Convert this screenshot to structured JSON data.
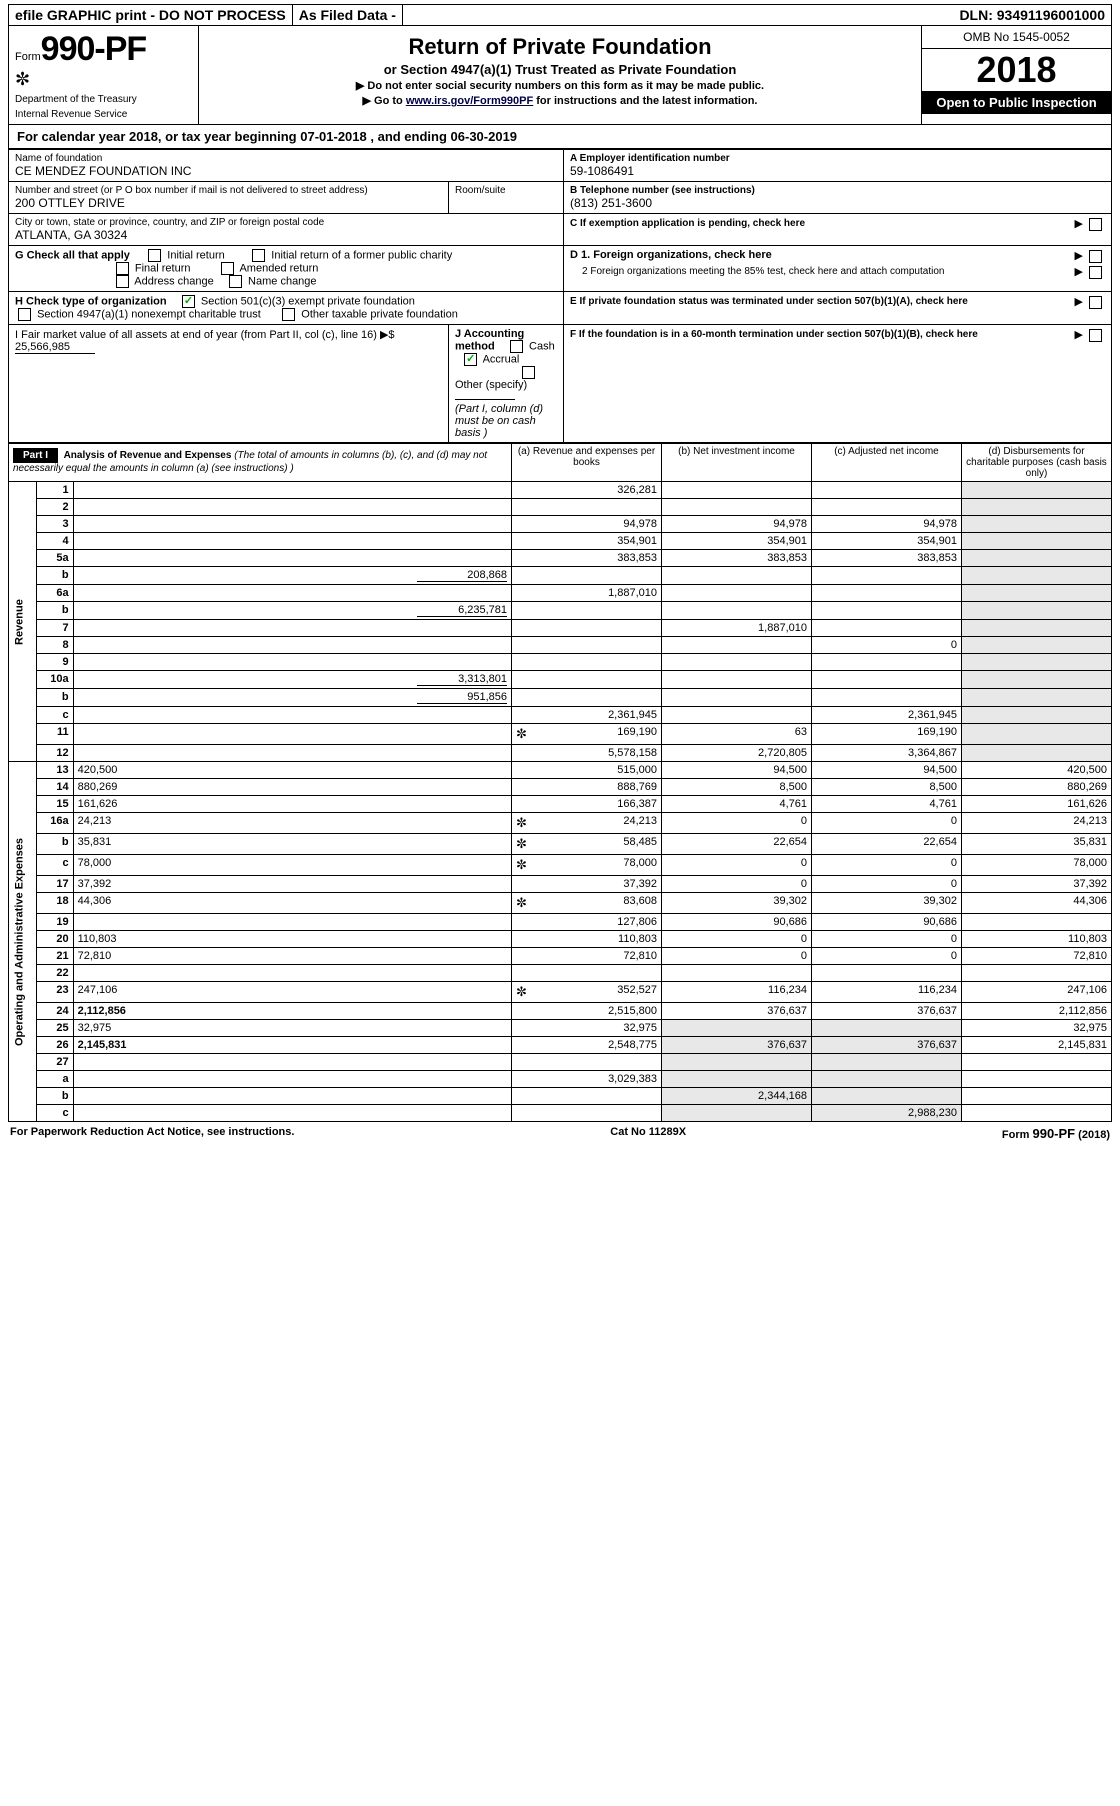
{
  "topbar": {
    "efile": "efile GRAPHIC print - DO NOT PROCESS",
    "asfiled": "As Filed Data -",
    "dln_label": "DLN:",
    "dln": "93491196001000"
  },
  "header": {
    "form_word": "Form",
    "form_no": "990-PF",
    "dept1": "Department of the Treasury",
    "dept2": "Internal Revenue Service",
    "title": "Return of Private Foundation",
    "subtitle": "or Section 4947(a)(1) Trust Treated as Private Foundation",
    "note1": "▶ Do not enter social security numbers on this form as it may be made public.",
    "note2_pre": "▶ Go to ",
    "note2_link": "www.irs.gov/Form990PF",
    "note2_post": " for instructions and the latest information.",
    "omb": "OMB No 1545-0052",
    "year": "2018",
    "open": "Open to Public Inspection"
  },
  "calyear": {
    "pre": "For calendar year 2018, or tax year beginning ",
    "begin": "07-01-2018",
    "mid": " , and ending ",
    "end": "06-30-2019"
  },
  "boxA": {
    "label": "Name of foundation",
    "val": "CE MENDEZ FOUNDATION INC"
  },
  "ein": {
    "label": "A Employer identification number",
    "val": "59-1086491"
  },
  "boxAddr": {
    "label": "Number and street (or P O  box number if mail is not delivered to street address)",
    "val": "200 OTTLEY DRIVE",
    "room_label": "Room/suite"
  },
  "tel": {
    "label": "B Telephone number (see instructions)",
    "val": "(813) 251-3600"
  },
  "city": {
    "label": "City or town, state or province, country, and ZIP or foreign postal code",
    "val": "ATLANTA, GA  30324"
  },
  "boxC": "C If exemption application is pending, check here",
  "boxG": {
    "label": "G Check all that apply",
    "o1": "Initial return",
    "o2": "Initial return of a former public charity",
    "o3": "Final return",
    "o4": "Amended return",
    "o5": "Address change",
    "o6": "Name change"
  },
  "boxD": {
    "d1": "D 1. Foreign organizations, check here",
    "d2": "2  Foreign organizations meeting the 85% test, check here and attach computation"
  },
  "boxH": {
    "label": "H Check type of organization",
    "o1": "Section 501(c)(3) exempt private foundation",
    "o2": "Section 4947(a)(1) nonexempt charitable trust",
    "o3": "Other taxable private foundation"
  },
  "boxE": "E  If private foundation status was terminated under section 507(b)(1)(A), check here",
  "boxI": {
    "label": "I Fair market value of all assets at end of year (from Part II, col  (c), line 16) ▶$ ",
    "val": "25,566,985"
  },
  "boxJ": {
    "label": "J Accounting method",
    "o1": "Cash",
    "o2": "Accrual",
    "o3": "Other (specify)",
    "note": "(Part I, column (d) must be on cash basis )"
  },
  "boxF": "F  If the foundation is in a 60-month termination under section 507(b)(1)(B), check here",
  "part1": {
    "title": "Part I",
    "heading": "Analysis of Revenue and Expenses",
    "sub": "(The total of amounts in columns (b), (c), and (d) may not necessarily equal the amounts in column (a) (see instructions) )",
    "col_a": "(a)  Revenue and expenses per books",
    "col_b": "(b)  Net investment income",
    "col_c": "(c)  Adjusted net income",
    "col_d": "(d)  Disbursements for charitable purposes (cash basis only)"
  },
  "sections": {
    "revenue": "Revenue",
    "expenses": "Operating and Administrative Expenses"
  },
  "rows": [
    {
      "n": "1",
      "d": "",
      "a": "326,281",
      "b": "",
      "c": ""
    },
    {
      "n": "2",
      "d": "",
      "a": "",
      "b": "",
      "c": ""
    },
    {
      "n": "3",
      "d": "",
      "a": "94,978",
      "b": "94,978",
      "c": "94,978"
    },
    {
      "n": "4",
      "d": "",
      "a": "354,901",
      "b": "354,901",
      "c": "354,901"
    },
    {
      "n": "5a",
      "d": "",
      "a": "383,853",
      "b": "383,853",
      "c": "383,853"
    },
    {
      "n": "b",
      "d": "",
      "inline": "208,868",
      "a": "",
      "b": "",
      "c": ""
    },
    {
      "n": "6a",
      "d": "",
      "a": "1,887,010",
      "b": "",
      "c": ""
    },
    {
      "n": "b",
      "d": "",
      "inline": "6,235,781",
      "a": "",
      "b": "",
      "c": ""
    },
    {
      "n": "7",
      "d": "",
      "a": "",
      "b": "1,887,010",
      "c": ""
    },
    {
      "n": "8",
      "d": "",
      "a": "",
      "b": "",
      "c": "0"
    },
    {
      "n": "9",
      "d": "",
      "a": "",
      "b": "",
      "c": ""
    },
    {
      "n": "10a",
      "d": "",
      "inline": "3,313,801",
      "a": "",
      "b": "",
      "c": ""
    },
    {
      "n": "b",
      "d": "",
      "inline": "951,856",
      "a": "",
      "b": "",
      "c": ""
    },
    {
      "n": "c",
      "d": "",
      "a": "2,361,945",
      "b": "",
      "c": "2,361,945"
    },
    {
      "n": "11",
      "d": "",
      "icon": true,
      "a": "169,190",
      "b": "63",
      "c": "169,190"
    },
    {
      "n": "12",
      "d": "",
      "bold": true,
      "a": "5,578,158",
      "b": "2,720,805",
      "c": "3,364,867"
    },
    {
      "n": "13",
      "d": "420,500",
      "a": "515,000",
      "b": "94,500",
      "c": "94,500"
    },
    {
      "n": "14",
      "d": "880,269",
      "a": "888,769",
      "b": "8,500",
      "c": "8,500"
    },
    {
      "n": "15",
      "d": "161,626",
      "a": "166,387",
      "b": "4,761",
      "c": "4,761"
    },
    {
      "n": "16a",
      "d": "24,213",
      "icon": true,
      "a": "24,213",
      "b": "0",
      "c": "0"
    },
    {
      "n": "b",
      "d": "35,831",
      "icon": true,
      "a": "58,485",
      "b": "22,654",
      "c": "22,654"
    },
    {
      "n": "c",
      "d": "78,000",
      "icon": true,
      "a": "78,000",
      "b": "0",
      "c": "0"
    },
    {
      "n": "17",
      "d": "37,392",
      "a": "37,392",
      "b": "0",
      "c": "0"
    },
    {
      "n": "18",
      "d": "44,306",
      "icon": true,
      "a": "83,608",
      "b": "39,302",
      "c": "39,302"
    },
    {
      "n": "19",
      "d": "",
      "a": "127,806",
      "b": "90,686",
      "c": "90,686"
    },
    {
      "n": "20",
      "d": "110,803",
      "a": "110,803",
      "b": "0",
      "c": "0"
    },
    {
      "n": "21",
      "d": "72,810",
      "a": "72,810",
      "b": "0",
      "c": "0"
    },
    {
      "n": "22",
      "d": "",
      "a": "",
      "b": "",
      "c": ""
    },
    {
      "n": "23",
      "d": "247,106",
      "icon": true,
      "a": "352,527",
      "b": "116,234",
      "c": "116,234"
    },
    {
      "n": "24",
      "d": "2,112,856",
      "bold": true,
      "a": "2,515,800",
      "b": "376,637",
      "c": "376,637"
    },
    {
      "n": "25",
      "d": "32,975",
      "a": "32,975",
      "b": "",
      "c": ""
    },
    {
      "n": "26",
      "d": "2,145,831",
      "bold": true,
      "a": "2,548,775",
      "b": "376,637",
      "c": "376,637"
    },
    {
      "n": "27",
      "d": "",
      "a": "",
      "b": "",
      "c": ""
    },
    {
      "n": "a",
      "d": "",
      "bold": true,
      "a": "3,029,383",
      "b": "",
      "c": ""
    },
    {
      "n": "b",
      "d": "",
      "bold": true,
      "a": "",
      "b": "2,344,168",
      "c": ""
    },
    {
      "n": "c",
      "d": "",
      "bold": true,
      "a": "",
      "b": "",
      "c": "2,988,230"
    }
  ],
  "footer": {
    "left": "For Paperwork Reduction Act Notice, see instructions.",
    "mid": "Cat No  11289X",
    "right": "Form 990-PF (2018)"
  }
}
